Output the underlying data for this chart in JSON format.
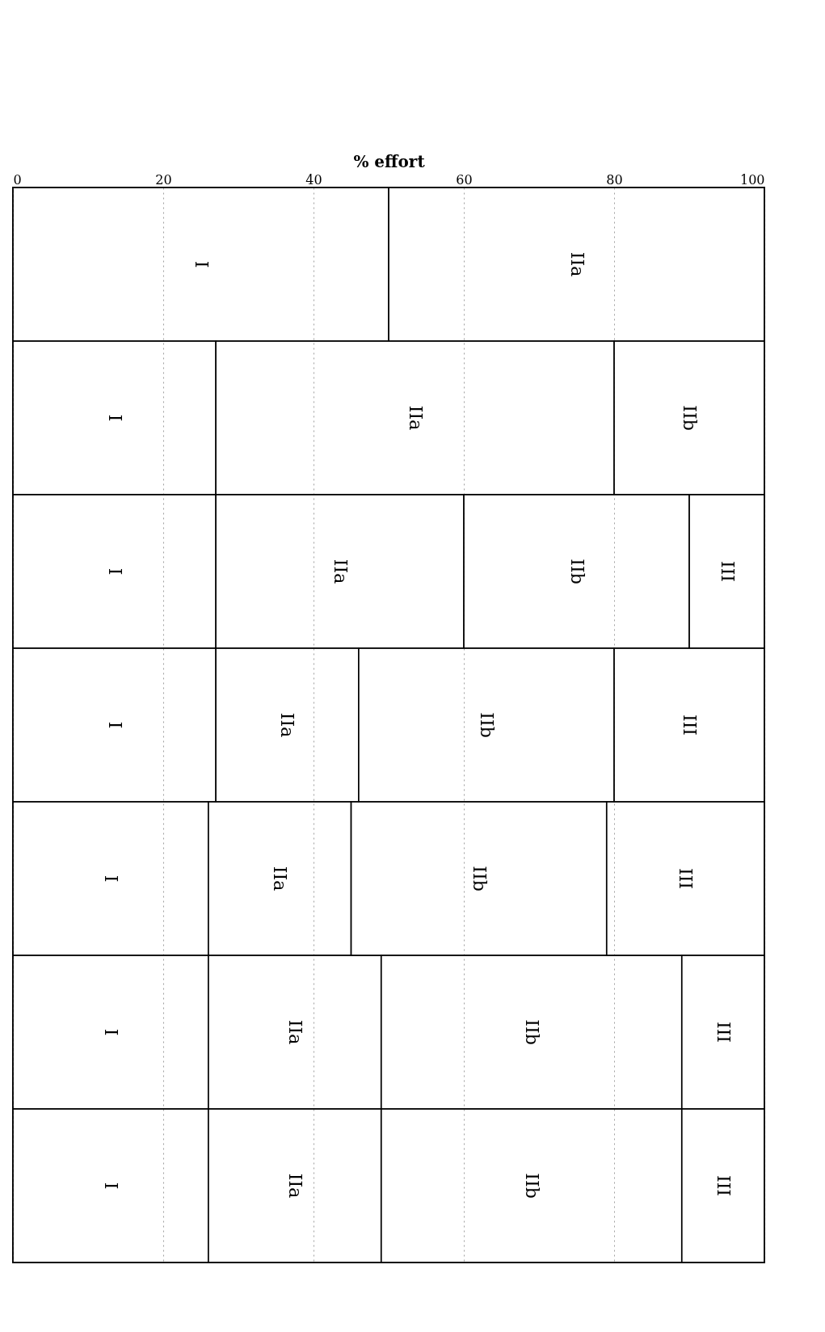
{
  "chart_data": {
    "type": "bar",
    "orientation": "horizontal",
    "stacked": true,
    "xlabel": "% effort",
    "categories": [
      null,
      null,
      null,
      null,
      null,
      null,
      null
    ],
    "series": [
      {
        "name": "I",
        "color": "#ffffff",
        "values": [
          50,
          27,
          27,
          27,
          26,
          26,
          26
        ]
      },
      {
        "name": "IIa",
        "color": "#ffffff",
        "values": [
          50,
          53,
          33,
          19,
          19,
          23,
          23
        ]
      },
      {
        "name": "IIb",
        "color": "#ffffff",
        "values": [
          null,
          20,
          30,
          34,
          34,
          40,
          40
        ]
      },
      {
        "name": "III",
        "color": "#ffffff",
        "values": [
          null,
          null,
          10,
          20,
          21,
          11,
          11
        ]
      }
    ],
    "xlim": [
      0,
      100
    ],
    "xticks": [
      0,
      20,
      40,
      60,
      80,
      100
    ],
    "grid": "x",
    "legend": false,
    "tick_labels": "x"
  }
}
